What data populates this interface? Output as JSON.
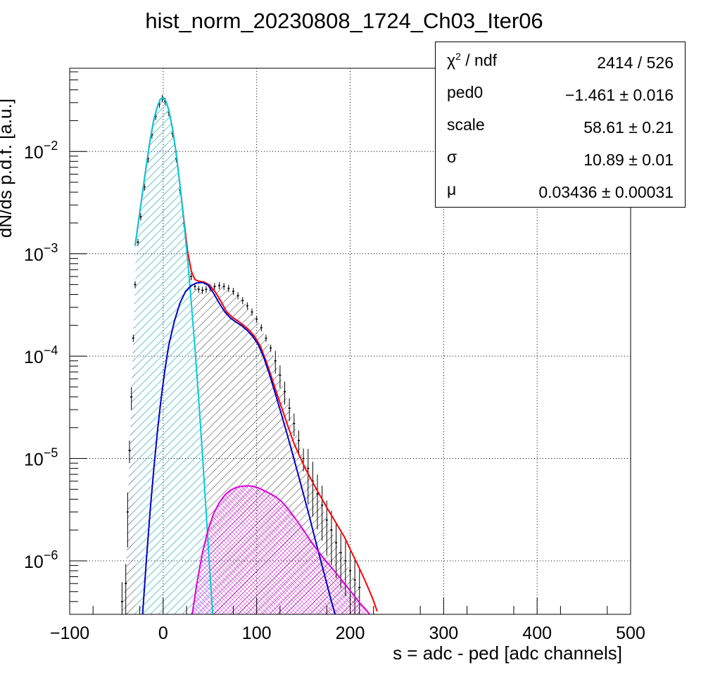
{
  "chart_data": {
    "type": "histogram",
    "title": "hist_norm_20230808_1724_Ch03_Iter06",
    "xlabel": "s = adc - ped [adc channels]",
    "ylabel": "dN/ds p.d.f. [a.u.]",
    "xlim": [
      -100,
      500
    ],
    "ylim": [
      3e-07,
      0.065
    ],
    "yscale": "log",
    "grid": true,
    "x_ticks": [
      -100,
      0,
      100,
      200,
      300,
      400,
      500
    ],
    "x_tick_labels": [
      "−100",
      "0",
      "100",
      "200",
      "300",
      "400",
      "500"
    ],
    "y_ticks": [
      1e-06,
      1e-05,
      0.0001,
      0.001,
      0.01
    ],
    "y_tick_labels": [
      {
        "base": "10",
        "exp": "−6"
      },
      {
        "base": "10",
        "exp": "−5"
      },
      {
        "base": "10",
        "exp": "−4"
      },
      {
        "base": "10",
        "exp": "−3"
      },
      {
        "base": "10",
        "exp": "−2"
      }
    ],
    "fit_parameters": {
      "ped0": -1.461,
      "scale": 58.61,
      "sigma": 10.89,
      "mu": 0.03436,
      "chi2": 2414,
      "ndf": 526
    },
    "histogram_points": [
      [
        -44,
        4e-07
      ],
      [
        -40,
        6e-07
      ],
      [
        -38,
        3e-06
      ],
      [
        -36,
        1.2e-05
      ],
      [
        -34,
        4e-05
      ],
      [
        -32,
        0.00015
      ],
      [
        -30,
        0.0005
      ],
      [
        -27,
        0.0013
      ],
      [
        -24,
        0.0023
      ],
      [
        -20,
        0.0045
      ],
      [
        -16,
        0.0085
      ],
      [
        -12,
        0.0145
      ],
      [
        -8,
        0.022
      ],
      [
        -4,
        0.029
      ],
      [
        -1,
        0.033
      ],
      [
        2,
        0.031
      ],
      [
        6,
        0.024
      ],
      [
        10,
        0.015
      ],
      [
        14,
        0.0085
      ],
      [
        18,
        0.0042
      ],
      [
        22,
        0.002
      ],
      [
        26,
        0.001
      ],
      [
        30,
        0.0006
      ],
      [
        34,
        0.00048
      ],
      [
        38,
        0.00045
      ],
      [
        42,
        0.00044
      ],
      [
        46,
        0.00045
      ],
      [
        50,
        0.00047
      ],
      [
        55,
        0.00048
      ],
      [
        60,
        0.00049
      ],
      [
        65,
        0.00048
      ],
      [
        70,
        0.00046
      ],
      [
        75,
        0.00043
      ],
      [
        80,
        0.00039
      ],
      [
        85,
        0.00035
      ],
      [
        90,
        0.00031
      ],
      [
        95,
        0.00027
      ],
      [
        100,
        0.00023
      ],
      [
        105,
        0.00019
      ],
      [
        110,
        0.00015
      ],
      [
        115,
        0.00012
      ],
      [
        120,
        9e-05
      ],
      [
        125,
        6.5e-05
      ],
      [
        130,
        4.5e-05
      ],
      [
        135,
        3.1e-05
      ],
      [
        140,
        2.2e-05
      ],
      [
        145,
        1.5e-05
      ],
      [
        150,
        1e-05
      ],
      [
        155,
        8e-06
      ],
      [
        160,
        6e-06
      ],
      [
        165,
        4.5e-06
      ],
      [
        170,
        3.5e-06
      ],
      [
        175,
        2.5e-06
      ],
      [
        180,
        2e-06
      ],
      [
        185,
        1.5e-06
      ],
      [
        190,
        1.2e-06
      ],
      [
        195,
        1e-06
      ],
      [
        200,
        8e-07
      ],
      [
        205,
        6.5e-07
      ],
      [
        210,
        5.5e-07
      ]
    ],
    "series": [
      {
        "name": "",
        "color": "#ff0000",
        "points": [
          [
            -30,
            0.0012
          ],
          [
            -26,
            0.0022
          ],
          [
            -22,
            0.004
          ],
          [
            -18,
            0.0073
          ],
          [
            -14,
            0.0128
          ],
          [
            -10,
            0.0205
          ],
          [
            -6,
            0.0278
          ],
          [
            -3,
            0.0325
          ],
          [
            0,
            0.0335
          ],
          [
            3,
            0.031
          ],
          [
            6,
            0.0255
          ],
          [
            10,
            0.0168
          ],
          [
            14,
            0.0095
          ],
          [
            18,
            0.0047
          ],
          [
            22,
            0.0022
          ],
          [
            26,
            0.00108
          ],
          [
            30,
            0.00068
          ],
          [
            34,
            0.00056
          ],
          [
            38,
            0.00054
          ],
          [
            44,
            0.00053
          ],
          [
            50,
            0.00049
          ],
          [
            56,
            0.00042
          ],
          [
            62,
            0.00034
          ],
          [
            68,
            0.00027
          ],
          [
            74,
            0.00024
          ],
          [
            80,
            0.00022
          ],
          [
            86,
            0.0002
          ],
          [
            92,
            0.00018
          ],
          [
            98,
            0.000155
          ],
          [
            104,
            0.000125
          ],
          [
            110,
            9e-05
          ],
          [
            116,
            6.2e-05
          ],
          [
            122,
            4.2e-05
          ],
          [
            128,
            2.9e-05
          ],
          [
            134,
            2e-05
          ],
          [
            140,
            1.4e-05
          ],
          [
            146,
            1.05e-05
          ],
          [
            152,
            8e-06
          ],
          [
            158,
            6.3e-06
          ],
          [
            164,
            5e-06
          ],
          [
            170,
            4e-06
          ],
          [
            176,
            3.2e-06
          ],
          [
            182,
            2.6e-06
          ],
          [
            188,
            2.1e-06
          ],
          [
            194,
            1.7e-06
          ],
          [
            200,
            1.3e-06
          ],
          [
            206,
            1e-06
          ],
          [
            212,
            7.7e-07
          ],
          [
            218,
            5.8e-07
          ],
          [
            224,
            4.3e-07
          ],
          [
            229,
            3.2e-07
          ]
        ]
      },
      {
        "name": "",
        "color": "#00ccdd",
        "points": [
          [
            -30,
            0.0012
          ],
          [
            -26,
            0.0022
          ],
          [
            -22,
            0.004
          ],
          [
            -18,
            0.0073
          ],
          [
            -14,
            0.0128
          ],
          [
            -10,
            0.0205
          ],
          [
            -6,
            0.0278
          ],
          [
            -3,
            0.0325
          ],
          [
            0,
            0.0335
          ],
          [
            3,
            0.031
          ],
          [
            6,
            0.0255
          ],
          [
            10,
            0.0168
          ],
          [
            14,
            0.0095
          ],
          [
            18,
            0.0047
          ],
          [
            22,
            0.0021
          ],
          [
            26,
            0.0009
          ],
          [
            30,
            0.00034
          ],
          [
            34,
            0.00012
          ],
          [
            38,
            3.8e-05
          ],
          [
            42,
            1.1e-05
          ],
          [
            46,
            3e-06
          ],
          [
            50,
            7.5e-07
          ],
          [
            53,
            3e-07
          ]
        ]
      },
      {
        "name": "",
        "color": "#0000cc",
        "points": [
          [
            -22,
            3e-07
          ],
          [
            -18,
            1e-06
          ],
          [
            -14,
            3e-06
          ],
          [
            -10,
            8e-06
          ],
          [
            -6,
            1.9e-05
          ],
          [
            -2,
            4e-05
          ],
          [
            2,
            7.5e-05
          ],
          [
            6,
            0.000128
          ],
          [
            12,
            0.00022
          ],
          [
            18,
            0.00033
          ],
          [
            24,
            0.00043
          ],
          [
            30,
            0.00049
          ],
          [
            36,
            0.00052
          ],
          [
            42,
            0.000525
          ],
          [
            48,
            0.000495
          ],
          [
            54,
            0.00041
          ],
          [
            60,
            0.00033
          ],
          [
            66,
            0.00027
          ],
          [
            72,
            0.000235
          ],
          [
            78,
            0.000215
          ],
          [
            84,
            0.000198
          ],
          [
            90,
            0.000178
          ],
          [
            96,
            0.000155
          ],
          [
            102,
            0.000128
          ],
          [
            108,
            9.5e-05
          ],
          [
            114,
            6.5e-05
          ],
          [
            120,
            4.3e-05
          ],
          [
            126,
            2.8e-05
          ],
          [
            132,
            1.8e-05
          ],
          [
            138,
            1.15e-05
          ],
          [
            144,
            7.2e-06
          ],
          [
            150,
            4.5e-06
          ],
          [
            156,
            2.8e-06
          ],
          [
            162,
            1.7e-06
          ],
          [
            168,
            1.05e-06
          ],
          [
            174,
            6.5e-07
          ],
          [
            180,
            4e-07
          ],
          [
            184,
            3e-07
          ]
        ]
      },
      {
        "name": "",
        "color": "#dd00dd",
        "points": [
          [
            31,
            3e-07
          ],
          [
            36,
            6e-07
          ],
          [
            42,
            1.2e-06
          ],
          [
            48,
            2e-06
          ],
          [
            54,
            2.9e-06
          ],
          [
            60,
            3.7e-06
          ],
          [
            66,
            4.4e-06
          ],
          [
            72,
            4.9e-06
          ],
          [
            78,
            5.2e-06
          ],
          [
            84,
            5.35e-06
          ],
          [
            90,
            5.4e-06
          ],
          [
            96,
            5.35e-06
          ],
          [
            102,
            5.15e-06
          ],
          [
            108,
            4.85e-06
          ],
          [
            114,
            4.55e-06
          ],
          [
            120,
            4.25e-06
          ],
          [
            126,
            3.85e-06
          ],
          [
            132,
            3.35e-06
          ],
          [
            138,
            2.85e-06
          ],
          [
            144,
            2.4e-06
          ],
          [
            150,
            2e-06
          ],
          [
            156,
            1.65e-06
          ],
          [
            162,
            1.38e-06
          ],
          [
            168,
            1.17e-06
          ],
          [
            174,
            1e-06
          ],
          [
            180,
            8.6e-07
          ],
          [
            186,
            7.4e-07
          ],
          [
            192,
            6.3e-07
          ],
          [
            198,
            5.4e-07
          ],
          [
            204,
            4.6e-07
          ],
          [
            210,
            3.9e-07
          ],
          [
            216,
            3.4e-07
          ],
          [
            221,
            3e-07
          ]
        ]
      }
    ]
  },
  "stats_box": {
    "rows": [
      {
        "label_base": "χ",
        "label_sup": "2",
        "label_rest": " / ndf",
        "value": "2414 / 526"
      },
      {
        "label": "ped0",
        "value": "−1.461 ± 0.016"
      },
      {
        "label": "scale",
        "value": "58.61 ± 0.21"
      },
      {
        "label": "σ",
        "value": "10.89 ± 0.01"
      },
      {
        "label": "μ",
        "value": "0.03436 ± 0.00031"
      }
    ]
  }
}
